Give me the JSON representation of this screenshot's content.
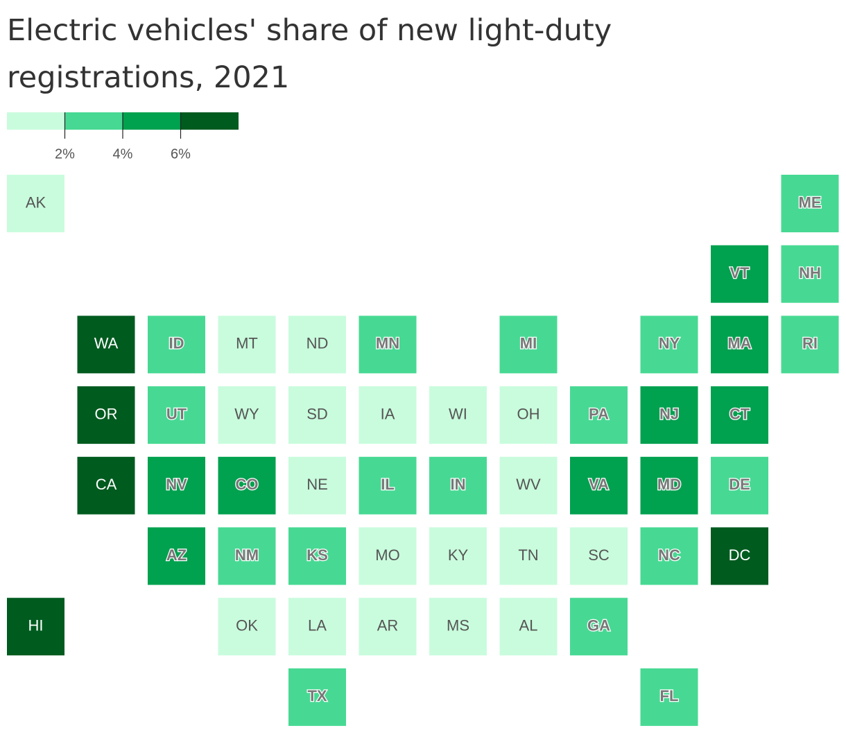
{
  "chart_data": {
    "type": "tilemap",
    "title": "Electric vehicles' share of new light-duty registrations, 2021",
    "legend": {
      "xlim": [
        0,
        8
      ],
      "ticks": [
        {
          "value": 2,
          "label": "2%"
        },
        {
          "value": 4,
          "label": "4%"
        },
        {
          "value": 6,
          "label": "6%"
        }
      ],
      "colors": [
        "#c9fcdd",
        "#47d993",
        "#00a14f",
        "#005b1f"
      ]
    },
    "states": [
      {
        "name": "AK",
        "color": "#c9fcdd"
      },
      {
        "name": "ME",
        "color": "#47d993"
      },
      {
        "name": "VT",
        "color": "#00a14f"
      },
      {
        "name": "NH",
        "color": "#47d993"
      },
      {
        "name": "WA",
        "color": "#005b1f"
      },
      {
        "name": "ID",
        "color": "#47d993"
      },
      {
        "name": "MT",
        "color": "#c9fcdd"
      },
      {
        "name": "ND",
        "color": "#c9fcdd"
      },
      {
        "name": "MN",
        "color": "#47d993"
      },
      {
        "name": "MI",
        "color": "#47d993"
      },
      {
        "name": "NY",
        "color": "#47d993"
      },
      {
        "name": "MA",
        "color": "#00a14f"
      },
      {
        "name": "RI",
        "color": "#47d993"
      },
      {
        "name": "OR",
        "color": "#005b1f"
      },
      {
        "name": "UT",
        "color": "#47d993"
      },
      {
        "name": "WY",
        "color": "#c9fcdd"
      },
      {
        "name": "SD",
        "color": "#c9fcdd"
      },
      {
        "name": "IA",
        "color": "#c9fcdd"
      },
      {
        "name": "WI",
        "color": "#c9fcdd"
      },
      {
        "name": "OH",
        "color": "#c9fcdd"
      },
      {
        "name": "PA",
        "color": "#47d993"
      },
      {
        "name": "NJ",
        "color": "#00a14f"
      },
      {
        "name": "CT",
        "color": "#00a14f"
      },
      {
        "name": "CA",
        "color": "#005b1f"
      },
      {
        "name": "NV",
        "color": "#00a14f"
      },
      {
        "name": "CO",
        "color": "#00a14f"
      },
      {
        "name": "NE",
        "color": "#c9fcdd"
      },
      {
        "name": "IL",
        "color": "#47d993"
      },
      {
        "name": "IN",
        "color": "#47d993"
      },
      {
        "name": "WV",
        "color": "#c9fcdd"
      },
      {
        "name": "VA",
        "color": "#00a14f"
      },
      {
        "name": "MD",
        "color": "#00a14f"
      },
      {
        "name": "DE",
        "color": "#47d993"
      },
      {
        "name": "AZ",
        "color": "#00a14f"
      },
      {
        "name": "NM",
        "color": "#47d993"
      },
      {
        "name": "KS",
        "color": "#47d993"
      },
      {
        "name": "MO",
        "color": "#c9fcdd"
      },
      {
        "name": "KY",
        "color": "#c9fcdd"
      },
      {
        "name": "TN",
        "color": "#c9fcdd"
      },
      {
        "name": "SC",
        "color": "#c9fcdd"
      },
      {
        "name": "NC",
        "color": "#47d993"
      },
      {
        "name": "DC",
        "color": "#005b1f"
      },
      {
        "name": "HI",
        "color": "#005b1f"
      },
      {
        "name": "OK",
        "color": "#c9fcdd"
      },
      {
        "name": "LA",
        "color": "#c9fcdd"
      },
      {
        "name": "AR",
        "color": "#c9fcdd"
      },
      {
        "name": "MS",
        "color": "#c9fcdd"
      },
      {
        "name": "AL",
        "color": "#c9fcdd"
      },
      {
        "name": "GA",
        "color": "#47d993"
      },
      {
        "name": "TX",
        "color": "#47d993"
      },
      {
        "name": "FL",
        "color": "#47d993"
      }
    ]
  }
}
